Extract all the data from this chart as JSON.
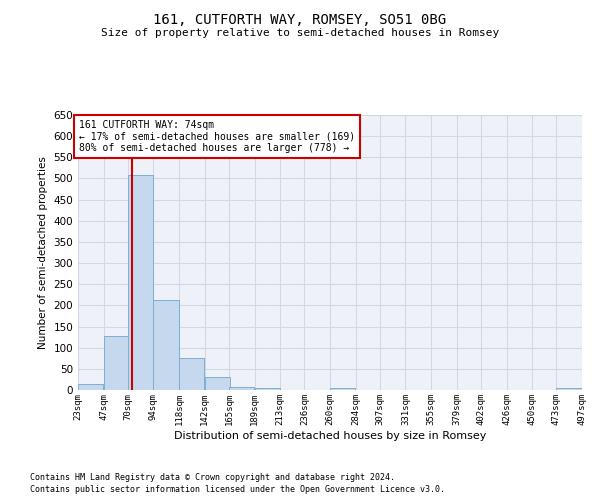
{
  "title": "161, CUTFORTH WAY, ROMSEY, SO51 0BG",
  "subtitle": "Size of property relative to semi-detached houses in Romsey",
  "xlabel": "Distribution of semi-detached houses by size in Romsey",
  "ylabel": "Number of semi-detached properties",
  "footer_line1": "Contains HM Land Registry data © Crown copyright and database right 2024.",
  "footer_line2": "Contains public sector information licensed under the Open Government Licence v3.0.",
  "property_size": 74,
  "property_label": "161 CUTFORTH WAY: 74sqm",
  "pct_smaller": 17,
  "n_smaller": 169,
  "pct_larger": 80,
  "n_larger": 778,
  "bar_color": "#c5d8ed",
  "bar_edge_color": "#7bafd4",
  "red_line_color": "#cc0000",
  "annotation_box_color": "#cc0000",
  "grid_color": "#d0d8e8",
  "background_color": "#eef2f8",
  "bin_edges": [
    23,
    47,
    70,
    94,
    118,
    142,
    165,
    189,
    213,
    236,
    260,
    284,
    307,
    331,
    355,
    379,
    402,
    426,
    450,
    473,
    497
  ],
  "bin_counts": [
    15,
    127,
    508,
    212,
    75,
    30,
    7,
    5,
    0,
    0,
    5,
    0,
    0,
    0,
    0,
    0,
    0,
    0,
    0,
    5
  ],
  "ylim": [
    0,
    650
  ],
  "yticks": [
    0,
    50,
    100,
    150,
    200,
    250,
    300,
    350,
    400,
    450,
    500,
    550,
    600,
    650
  ]
}
